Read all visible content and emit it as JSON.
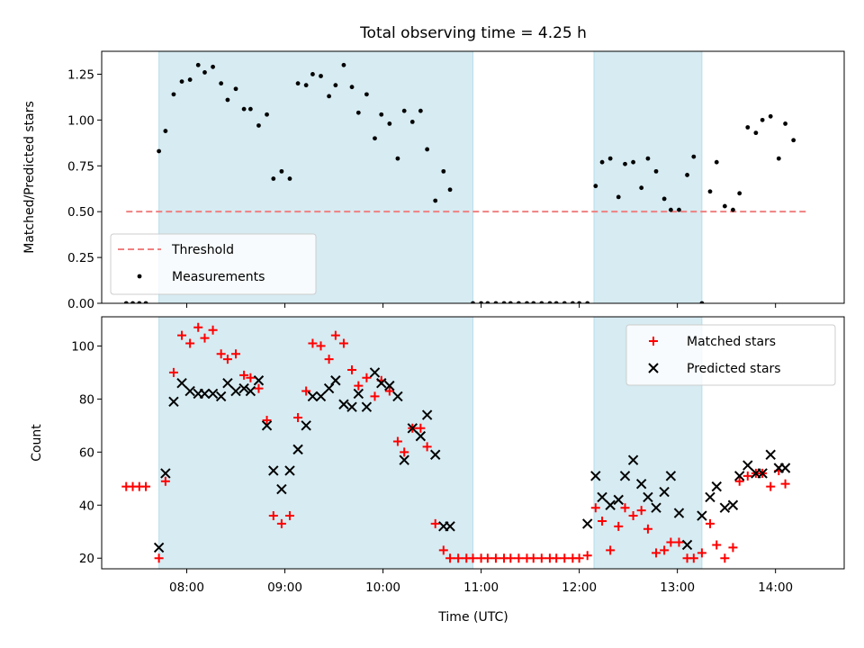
{
  "chart_data": [
    {
      "type": "scatter",
      "title": "Total observing time = 4.25 h",
      "xlabel": "",
      "ylabel": "Matched/Predicted stars",
      "xlim": [
        "07:08",
        "14:42"
      ],
      "ylim": [
        0,
        1.375
      ],
      "yticks": [
        "0.00",
        "0.25",
        "0.50",
        "0.75",
        "1.00",
        "1.25"
      ],
      "shaded_intervals": [
        [
          "07:43",
          "10:55"
        ],
        [
          "12:09",
          "13:15"
        ]
      ],
      "threshold": {
        "name": "Threshold",
        "y": 0.5,
        "x_range": [
          "07:23",
          "14:19"
        ],
        "color": "#f08080"
      },
      "legend": {
        "position": "lower left",
        "entries": [
          "Threshold",
          "Measurements"
        ]
      },
      "series": [
        {
          "name": "Measurements",
          "color": "#000000",
          "points": [
            [
              "07:23",
              0.0
            ],
            [
              "07:27",
              0.0
            ],
            [
              "07:31",
              0.0
            ],
            [
              "07:35",
              0.0
            ],
            [
              "07:43",
              0.83
            ],
            [
              "07:47",
              0.94
            ],
            [
              "07:52",
              1.14
            ],
            [
              "07:57",
              1.21
            ],
            [
              "08:02",
              1.22
            ],
            [
              "08:07",
              1.3
            ],
            [
              "08:11",
              1.26
            ],
            [
              "08:16",
              1.29
            ],
            [
              "08:21",
              1.2
            ],
            [
              "08:25",
              1.11
            ],
            [
              "08:30",
              1.17
            ],
            [
              "08:35",
              1.06
            ],
            [
              "08:39",
              1.06
            ],
            [
              "08:44",
              0.97
            ],
            [
              "08:49",
              1.03
            ],
            [
              "08:53",
              0.68
            ],
            [
              "08:58",
              0.72
            ],
            [
              "09:03",
              0.68
            ],
            [
              "09:08",
              1.2
            ],
            [
              "09:13",
              1.19
            ],
            [
              "09:17",
              1.25
            ],
            [
              "09:22",
              1.24
            ],
            [
              "09:27",
              1.13
            ],
            [
              "09:31",
              1.19
            ],
            [
              "09:36",
              1.3
            ],
            [
              "09:41",
              1.18
            ],
            [
              "09:45",
              1.04
            ],
            [
              "09:50",
              1.14
            ],
            [
              "09:55",
              0.9
            ],
            [
              "09:59",
              1.03
            ],
            [
              "10:04",
              0.98
            ],
            [
              "10:09",
              0.79
            ],
            [
              "10:13",
              1.05
            ],
            [
              "10:18",
              0.99
            ],
            [
              "10:23",
              1.05
            ],
            [
              "10:27",
              0.84
            ],
            [
              "10:32",
              0.56
            ],
            [
              "10:37",
              0.72
            ],
            [
              "10:41",
              0.62
            ],
            [
              "10:55",
              0.0
            ],
            [
              "11:00",
              0.0
            ],
            [
              "11:04",
              0.0
            ],
            [
              "11:09",
              0.0
            ],
            [
              "11:14",
              0.0
            ],
            [
              "11:18",
              0.0
            ],
            [
              "11:23",
              0.0
            ],
            [
              "11:28",
              0.0
            ],
            [
              "11:32",
              0.0
            ],
            [
              "11:37",
              0.0
            ],
            [
              "11:42",
              0.0
            ],
            [
              "11:46",
              0.0
            ],
            [
              "11:51",
              0.0
            ],
            [
              "11:56",
              0.0
            ],
            [
              "12:00",
              0.0
            ],
            [
              "12:05",
              0.0
            ],
            [
              "12:10",
              0.64
            ],
            [
              "12:14",
              0.77
            ],
            [
              "12:19",
              0.79
            ],
            [
              "12:24",
              0.58
            ],
            [
              "12:28",
              0.76
            ],
            [
              "12:33",
              0.77
            ],
            [
              "12:38",
              0.63
            ],
            [
              "12:42",
              0.79
            ],
            [
              "12:47",
              0.72
            ],
            [
              "12:52",
              0.57
            ],
            [
              "12:56",
              0.51
            ],
            [
              "13:01",
              0.51
            ],
            [
              "13:06",
              0.7
            ],
            [
              "13:10",
              0.8
            ],
            [
              "13:15",
              0.0
            ],
            [
              "13:20",
              0.61
            ],
            [
              "13:24",
              0.77
            ],
            [
              "13:29",
              0.53
            ],
            [
              "13:34",
              0.51
            ],
            [
              "13:38",
              0.6
            ],
            [
              "13:43",
              0.96
            ],
            [
              "13:48",
              0.93
            ],
            [
              "13:52",
              1.0
            ],
            [
              "13:57",
              1.02
            ],
            [
              "14:02",
              0.79
            ],
            [
              "14:06",
              0.98
            ],
            [
              "14:11",
              0.89
            ]
          ]
        }
      ]
    },
    {
      "type": "scatter",
      "title": "",
      "xlabel": "Time (UTC)",
      "ylabel": "Count",
      "xlim": [
        "07:08",
        "14:42"
      ],
      "ylim": [
        16,
        111
      ],
      "yticks": [
        "20",
        "40",
        "60",
        "80",
        "100"
      ],
      "xticks": [
        "08:00",
        "09:00",
        "10:00",
        "11:00",
        "12:00",
        "13:00",
        "14:00"
      ],
      "shaded_intervals": [
        [
          "07:43",
          "10:55"
        ],
        [
          "12:09",
          "13:15"
        ]
      ],
      "legend": {
        "position": "upper right",
        "entries": [
          "Matched stars",
          "Predicted stars"
        ]
      },
      "series": [
        {
          "name": "Matched stars",
          "marker": "+",
          "color": "#ff0000",
          "points": [
            [
              "07:23",
              47
            ],
            [
              "07:27",
              47
            ],
            [
              "07:31",
              47
            ],
            [
              "07:35",
              47
            ],
            [
              "07:43",
              20
            ],
            [
              "07:47",
              49
            ],
            [
              "07:52",
              90
            ],
            [
              "07:57",
              104
            ],
            [
              "08:02",
              101
            ],
            [
              "08:07",
              107
            ],
            [
              "08:11",
              103
            ],
            [
              "08:16",
              106
            ],
            [
              "08:21",
              97
            ],
            [
              "08:25",
              95
            ],
            [
              "08:30",
              97
            ],
            [
              "08:35",
              89
            ],
            [
              "08:39",
              88
            ],
            [
              "08:44",
              84
            ],
            [
              "08:49",
              72
            ],
            [
              "08:53",
              36
            ],
            [
              "08:58",
              33
            ],
            [
              "09:03",
              36
            ],
            [
              "09:08",
              73
            ],
            [
              "09:13",
              83
            ],
            [
              "09:17",
              101
            ],
            [
              "09:22",
              100
            ],
            [
              "09:27",
              95
            ],
            [
              "09:31",
              104
            ],
            [
              "09:36",
              101
            ],
            [
              "09:41",
              91
            ],
            [
              "09:45",
              85
            ],
            [
              "09:50",
              88
            ],
            [
              "09:55",
              81
            ],
            [
              "09:59",
              87
            ],
            [
              "10:04",
              83
            ],
            [
              "10:09",
              64
            ],
            [
              "10:13",
              60
            ],
            [
              "10:18",
              69
            ],
            [
              "10:23",
              69
            ],
            [
              "10:27",
              62
            ],
            [
              "10:32",
              33
            ],
            [
              "10:37",
              23
            ],
            [
              "10:41",
              20
            ],
            [
              "10:46",
              20
            ],
            [
              "10:51",
              20
            ],
            [
              "10:55",
              20
            ],
            [
              "11:00",
              20
            ],
            [
              "11:04",
              20
            ],
            [
              "11:09",
              20
            ],
            [
              "11:14",
              20
            ],
            [
              "11:18",
              20
            ],
            [
              "11:23",
              20
            ],
            [
              "11:28",
              20
            ],
            [
              "11:32",
              20
            ],
            [
              "11:37",
              20
            ],
            [
              "11:42",
              20
            ],
            [
              "11:46",
              20
            ],
            [
              "11:51",
              20
            ],
            [
              "11:56",
              20
            ],
            [
              "12:00",
              20
            ],
            [
              "12:05",
              21
            ],
            [
              "12:10",
              39
            ],
            [
              "12:14",
              34
            ],
            [
              "12:19",
              23
            ],
            [
              "12:24",
              32
            ],
            [
              "12:28",
              39
            ],
            [
              "12:33",
              36
            ],
            [
              "12:38",
              38
            ],
            [
              "12:42",
              31
            ],
            [
              "12:47",
              22
            ],
            [
              "12:52",
              23
            ],
            [
              "12:56",
              26
            ],
            [
              "13:01",
              26
            ],
            [
              "13:06",
              20
            ],
            [
              "13:10",
              20
            ],
            [
              "13:15",
              22
            ],
            [
              "13:20",
              33
            ],
            [
              "13:24",
              25
            ],
            [
              "13:29",
              20
            ],
            [
              "13:34",
              24
            ],
            [
              "13:38",
              49
            ],
            [
              "13:43",
              51
            ],
            [
              "13:48",
              52
            ],
            [
              "13:52",
              52
            ],
            [
              "13:57",
              47
            ],
            [
              "14:02",
              53
            ],
            [
              "14:06",
              48
            ]
          ]
        },
        {
          "name": "Predicted stars",
          "marker": "x",
          "color": "#000000",
          "points": [
            [
              "07:43",
              24
            ],
            [
              "07:47",
              52
            ],
            [
              "07:52",
              79
            ],
            [
              "07:57",
              86
            ],
            [
              "08:02",
              83
            ],
            [
              "08:07",
              82
            ],
            [
              "08:11",
              82
            ],
            [
              "08:16",
              82
            ],
            [
              "08:21",
              81
            ],
            [
              "08:25",
              86
            ],
            [
              "08:30",
              83
            ],
            [
              "08:35",
              84
            ],
            [
              "08:39",
              83
            ],
            [
              "08:44",
              87
            ],
            [
              "08:49",
              70
            ],
            [
              "08:53",
              53
            ],
            [
              "08:58",
              46
            ],
            [
              "09:03",
              53
            ],
            [
              "09:08",
              61
            ],
            [
              "09:13",
              70
            ],
            [
              "09:17",
              81
            ],
            [
              "09:22",
              81
            ],
            [
              "09:27",
              84
            ],
            [
              "09:31",
              87
            ],
            [
              "09:36",
              78
            ],
            [
              "09:41",
              77
            ],
            [
              "09:45",
              82
            ],
            [
              "09:50",
              77
            ],
            [
              "09:55",
              90
            ],
            [
              "09:59",
              86
            ],
            [
              "10:04",
              85
            ],
            [
              "10:09",
              81
            ],
            [
              "10:13",
              57
            ],
            [
              "10:18",
              69
            ],
            [
              "10:23",
              66
            ],
            [
              "10:27",
              74
            ],
            [
              "10:32",
              59
            ],
            [
              "10:37",
              32
            ],
            [
              "10:41",
              32
            ],
            [
              "12:05",
              33
            ],
            [
              "12:10",
              51
            ],
            [
              "12:14",
              43
            ],
            [
              "12:19",
              40
            ],
            [
              "12:24",
              42
            ],
            [
              "12:28",
              51
            ],
            [
              "12:33",
              57
            ],
            [
              "12:38",
              48
            ],
            [
              "12:42",
              43
            ],
            [
              "12:47",
              39
            ],
            [
              "12:52",
              45
            ],
            [
              "12:56",
              51
            ],
            [
              "13:01",
              37
            ],
            [
              "13:06",
              25
            ],
            [
              "13:15",
              36
            ],
            [
              "13:20",
              43
            ],
            [
              "13:24",
              47
            ],
            [
              "13:29",
              39
            ],
            [
              "13:34",
              40
            ],
            [
              "13:38",
              51
            ],
            [
              "13:43",
              55
            ],
            [
              "13:48",
              52
            ],
            [
              "13:52",
              52
            ],
            [
              "13:57",
              59
            ],
            [
              "14:02",
              54
            ],
            [
              "14:06",
              54
            ]
          ]
        }
      ]
    }
  ],
  "colors": {
    "shade": "#add8e6",
    "threshold": "#f08080",
    "matched": "#ff0000",
    "predicted": "#000000"
  }
}
